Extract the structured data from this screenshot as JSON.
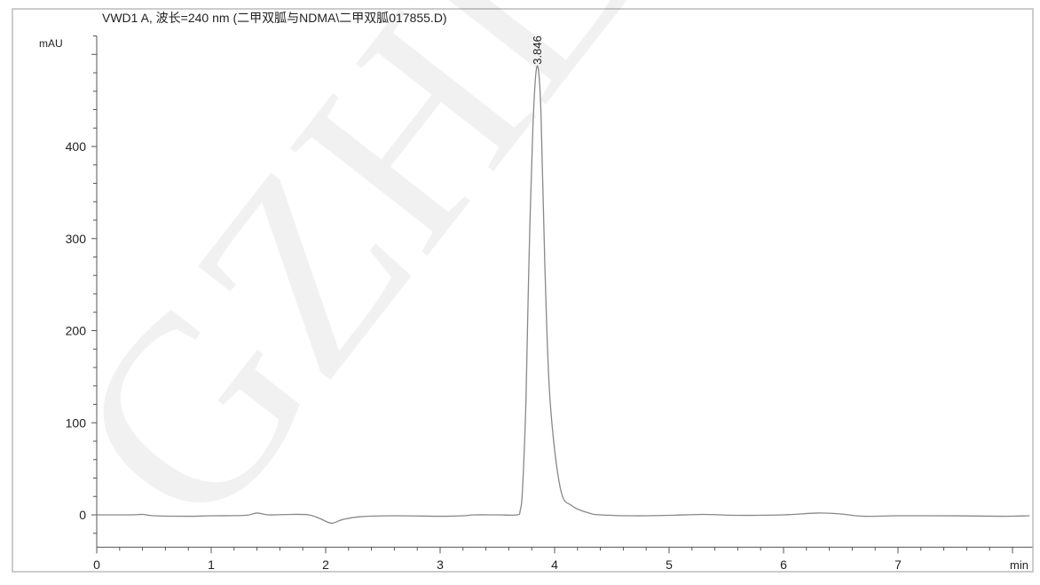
{
  "chart_data": {
    "type": "line",
    "title": "VWD1 A, 波长=240 nm (二甲双胍与NDMA\\二甲双胍017855.D)",
    "xlabel": "min",
    "ylabel": "mAU",
    "xlim": [
      0,
      8.15
    ],
    "ylim": [
      -35,
      520
    ],
    "x_ticks": [
      0,
      1,
      2,
      3,
      4,
      5,
      6,
      7
    ],
    "y_ticks": [
      0,
      100,
      200,
      300,
      400
    ],
    "x_minor_step": 0.2,
    "y_minor_step": 20,
    "grid": false,
    "line_color": "#888888",
    "annotations": [
      {
        "label": "3.846",
        "x": 3.846,
        "y": 487
      }
    ],
    "series": [
      {
        "x": [
          0,
          0.3,
          0.4,
          0.5,
          0.8,
          1.0,
          1.3,
          1.4,
          1.5,
          1.7,
          1.85,
          1.95,
          2.05,
          2.15,
          2.3,
          2.6,
          3.0,
          3.2,
          3.3,
          3.5,
          3.67,
          3.7,
          3.72,
          3.75,
          3.775,
          3.81,
          3.846,
          3.88,
          3.915,
          3.96,
          4.05,
          4.15,
          4.3,
          4.4,
          4.7,
          5.0,
          5.3,
          5.6,
          6.0,
          6.3,
          6.5,
          6.7,
          7.0,
          7.5,
          7.9,
          8.15
        ],
        "y": [
          0,
          0,
          0.5,
          -1,
          -1.5,
          -1,
          -0.5,
          2,
          0,
          0.5,
          0,
          -4,
          -9,
          -5,
          -2,
          -1,
          -1.5,
          -1,
          0,
          0,
          0,
          5,
          29,
          125,
          270,
          420,
          487,
          440,
          270,
          125,
          29,
          10,
          2,
          0,
          -1,
          -0.5,
          0.5,
          -0.5,
          0,
          2,
          1,
          -1.5,
          -1,
          -1,
          -1.5,
          -1
        ]
      }
    ]
  },
  "watermark": "GZHLM"
}
